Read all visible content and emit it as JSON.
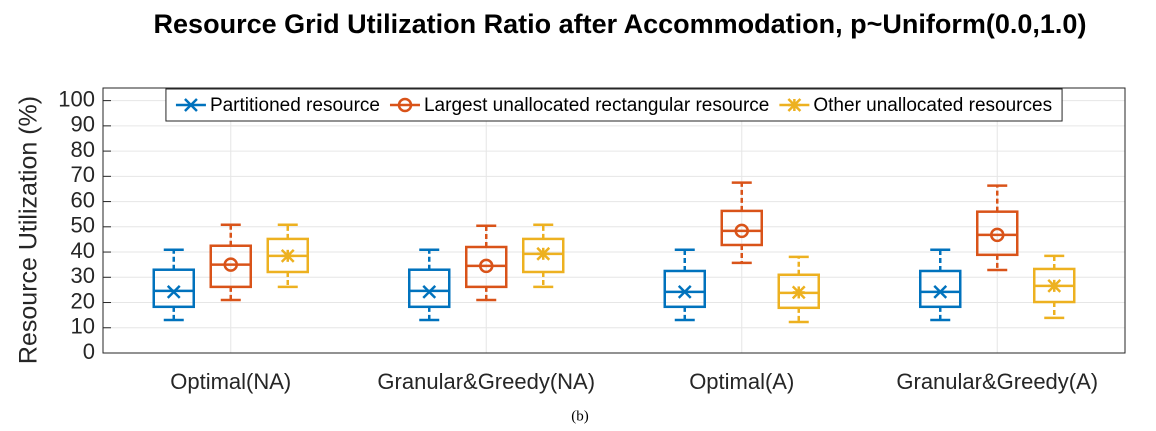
{
  "chart_data": {
    "type": "box",
    "title": "Resource Grid Utilization Ratio after Accommodation, p~Uniform(0.0,1.0)",
    "ylabel": "Resource Utilization (%)",
    "caption": "(b)",
    "categories": [
      "Optimal(NA)",
      "Granular&Greedy(NA)",
      "Optimal(A)",
      "Granular&Greedy(A)"
    ],
    "ylim": [
      0,
      105
    ],
    "yticks": [
      0,
      10,
      20,
      30,
      40,
      50,
      60,
      70,
      80,
      90,
      100
    ],
    "grid": true,
    "legend": "top",
    "series": [
      {
        "name": "Partitioned resource",
        "color": "#0072BD",
        "marker": "x",
        "whisker_low": [
          13.1,
          13.1,
          13.1,
          13.1
        ],
        "q1": [
          18.3,
          18.3,
          18.3,
          18.3
        ],
        "median": [
          24.6,
          24.6,
          24.2,
          24.2
        ],
        "q3": [
          33,
          33,
          32.5,
          32.5
        ],
        "whisker_high": [
          40.9,
          40.9,
          40.9,
          40.9
        ],
        "mean": [
          24.2,
          24.2,
          24.2,
          24.2
        ]
      },
      {
        "name": "Largest unallocated rectangular resource",
        "color": "#D95319",
        "marker": "o",
        "whisker_low": [
          21,
          21,
          35.7,
          32.9
        ],
        "q1": [
          26.2,
          26.2,
          42.8,
          38.9
        ],
        "median": [
          35,
          34.5,
          48.4,
          46.8
        ],
        "q3": [
          42.5,
          42,
          56.3,
          56
        ],
        "whisker_high": [
          50.8,
          50.4,
          67.5,
          66.3
        ],
        "mean": [
          35,
          34.5,
          48.4,
          46.8
        ]
      },
      {
        "name": "Other unallocated resources",
        "color": "#EDB120",
        "marker": "*",
        "whisker_low": [
          26.2,
          26.2,
          12.3,
          13.9
        ],
        "q1": [
          32.1,
          32.1,
          17.9,
          20.2
        ],
        "median": [
          38.5,
          39.3,
          23.8,
          26.6
        ],
        "q3": [
          45.2,
          45.2,
          31,
          33.3
        ],
        "whisker_high": [
          50.8,
          50.8,
          38.1,
          38.5
        ],
        "mean": [
          38.5,
          39.3,
          24,
          26.6
        ]
      }
    ]
  }
}
